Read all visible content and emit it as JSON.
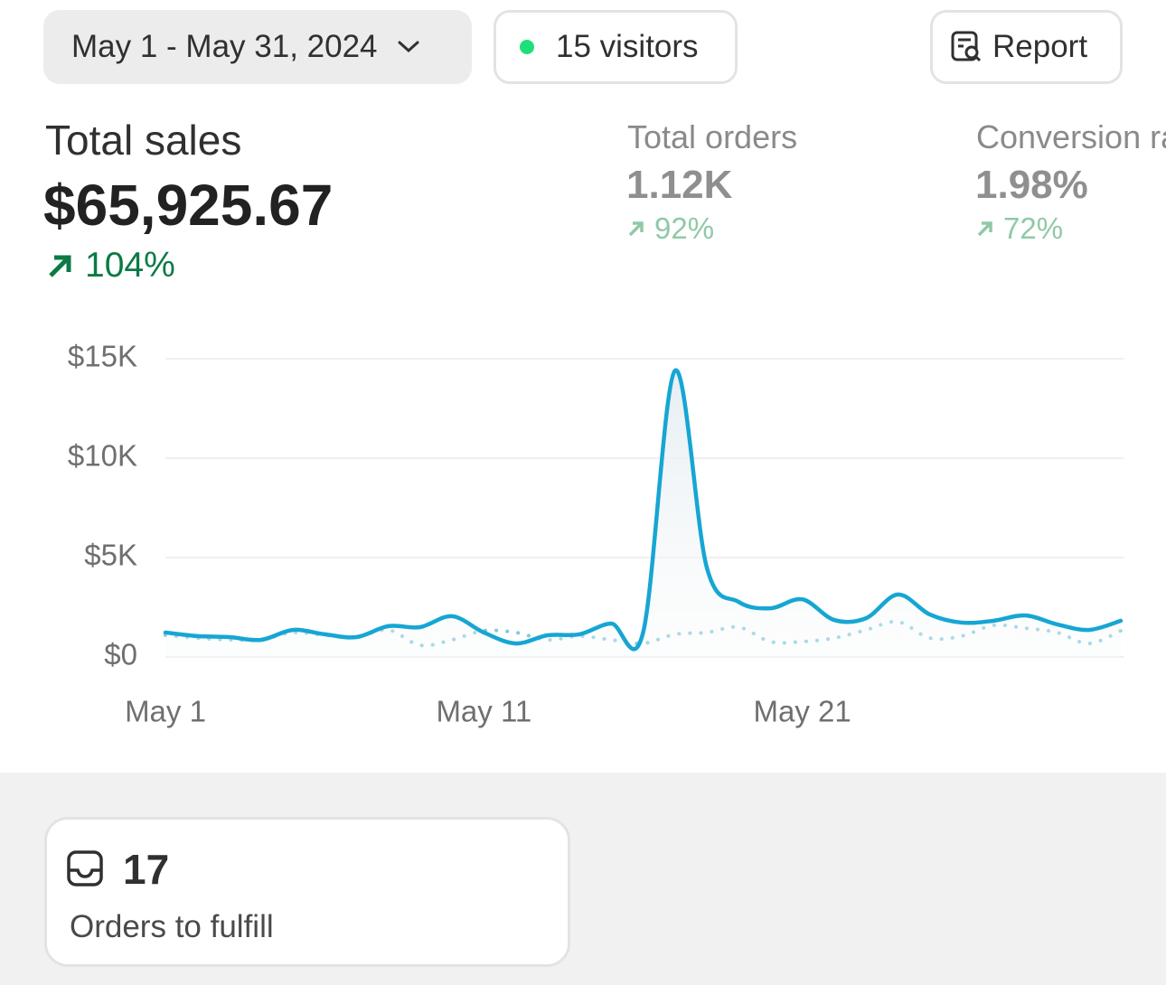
{
  "header": {
    "date_range": "May 1 - May 31, 2024",
    "visitors": "15 visitors",
    "report": "Report"
  },
  "metrics": [
    {
      "label": "Total sales",
      "value": "$65,925.67",
      "change": "104%"
    },
    {
      "label": "Total orders",
      "value": "1.12K",
      "change": "92%"
    },
    {
      "label": "Conversion rate",
      "value": "1.98%",
      "change": "72%"
    }
  ],
  "chart_data": {
    "type": "line",
    "categories": [
      "May 1",
      null,
      null,
      null,
      null,
      null,
      null,
      null,
      null,
      null,
      "May 11",
      null,
      null,
      null,
      null,
      null,
      null,
      null,
      null,
      null,
      "May 21",
      null,
      null,
      null,
      null,
      null,
      null,
      null,
      null,
      null,
      null
    ],
    "series": [
      {
        "color": "#16a6d3",
        "style": "solid",
        "fill": true,
        "values": [
          1230,
          1050,
          1000,
          860,
          1360,
          1140,
          1000,
          1550,
          1500,
          2050,
          1230,
          680,
          1090,
          1140,
          1680,
          1230,
          14400,
          4500,
          2770,
          2450,
          2900,
          1860,
          1950,
          3140,
          2140,
          1730,
          1820,
          2090,
          1640,
          1360,
          1820
        ]
      },
      {
        "color": "#7fc9de",
        "style": "dotted",
        "fill": false,
        "values": [
          1090,
          950,
          860,
          860,
          1230,
          1090,
          1000,
          1360,
          590,
          860,
          1320,
          1230,
          860,
          1050,
          860,
          680,
          1140,
          1230,
          1500,
          770,
          770,
          950,
          1360,
          1770,
          950,
          1050,
          1590,
          1450,
          1230,
          680,
          1320
        ]
      }
    ],
    "ylim": [
      0,
      15000
    ],
    "yticks": [
      {
        "value": 0,
        "label": "$0"
      },
      {
        "value": 5000,
        "label": "$5K"
      },
      {
        "value": 10000,
        "label": "$10K"
      },
      {
        "value": 15000,
        "label": "$15K"
      }
    ],
    "grid": true
  },
  "cards": [
    {
      "value": "17",
      "label": "Orders to fulfill"
    }
  ]
}
